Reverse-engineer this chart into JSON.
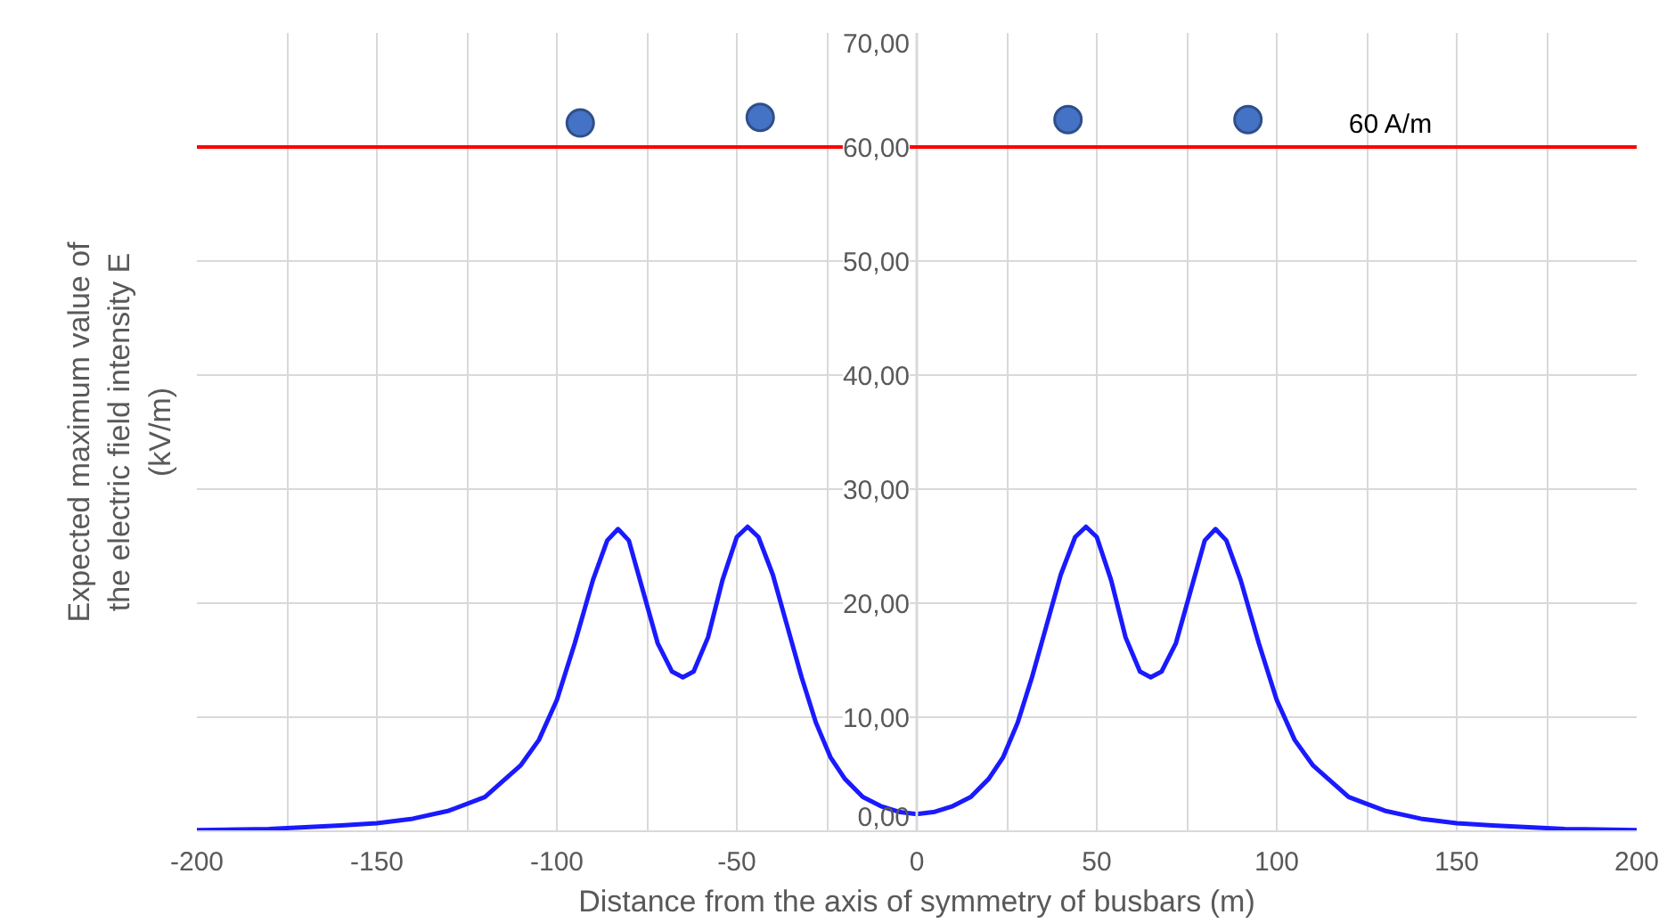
{
  "chart_data": {
    "type": "line",
    "xlabel": "Distance from the axis of symmetry of busbars (m)",
    "ylabel": "Expected maximum value of\nthe electric field intensity E\n(kV/m)",
    "xlim": [
      -200,
      200
    ],
    "ylim": [
      0,
      70
    ],
    "xticks": [
      -200,
      {
        "value": -175,
        "label": null
      },
      -150,
      {
        "value": -125,
        "label": null
      },
      -100,
      {
        "value": -75,
        "label": null
      },
      -50,
      {
        "value": -25,
        "label": null
      },
      0,
      {
        "value": 25,
        "label": null
      },
      50,
      {
        "value": 75,
        "label": null
      },
      100,
      {
        "value": 125,
        "label": null
      },
      150,
      {
        "value": 175,
        "label": null
      },
      200
    ],
    "yticks": [
      {
        "value": 0,
        "label": "0,00"
      },
      {
        "value": 10,
        "label": "10,00"
      },
      {
        "value": 20,
        "label": "20,00"
      },
      {
        "value": 30,
        "label": "30,00"
      },
      {
        "value": 40,
        "label": "40,00"
      },
      {
        "value": 50,
        "label": "50,00"
      },
      {
        "value": 60,
        "label": "60,00"
      },
      {
        "value": 70,
        "label": "70,00"
      }
    ],
    "grid": true,
    "ref_lines": [
      {
        "axis": "y",
        "value": 60,
        "label": "60  A/m",
        "color": "#ff0000",
        "line_style": "solid"
      }
    ],
    "series": [
      {
        "color": "#1a1aff",
        "marker": "none",
        "x": [
          -200,
          -180,
          -160,
          -150,
          -140,
          -130,
          -120,
          -110,
          -105,
          -100,
          -95,
          -90,
          -86,
          -83,
          -80,
          -76,
          -72,
          -68,
          -65,
          -62,
          -58,
          -54,
          -50,
          -47,
          -44,
          -40,
          -36,
          -32,
          -28,
          -24,
          -20,
          -15,
          -10,
          -5,
          0,
          5,
          10,
          15,
          20,
          24,
          28,
          32,
          36,
          40,
          44,
          47,
          50,
          54,
          58,
          62,
          65,
          68,
          72,
          76,
          80,
          83,
          86,
          90,
          95,
          100,
          105,
          110,
          120,
          130,
          140,
          150,
          160,
          180,
          200
        ],
        "values": [
          0.1,
          0.2,
          0.5,
          0.7,
          1.1,
          1.8,
          3.0,
          5.8,
          8,
          11.5,
          16.5,
          22,
          25.5,
          26.5,
          25.5,
          21,
          16.5,
          14,
          13.5,
          14,
          17,
          22,
          25.8,
          26.7,
          25.8,
          22.5,
          18,
          13.5,
          9.5,
          6.5,
          4.6,
          3,
          2.2,
          1.7,
          1.5,
          1.7,
          2.2,
          3,
          4.6,
          6.5,
          9.5,
          13.5,
          18,
          22.5,
          25.8,
          26.7,
          25.8,
          22,
          17,
          14,
          13.5,
          14,
          16.5,
          21,
          25.5,
          26.5,
          25.5,
          22,
          16.5,
          11.5,
          8,
          5.8,
          3.0,
          1.8,
          1.1,
          0.7,
          0.5,
          0.2,
          0.1
        ]
      },
      {
        "type": "scatter",
        "color": "#4472c4",
        "marker": "circle",
        "x": [
          -93.5,
          -43.5,
          42,
          92
        ],
        "values": [
          62.1,
          62.6,
          62.4,
          62.4
        ]
      }
    ]
  }
}
